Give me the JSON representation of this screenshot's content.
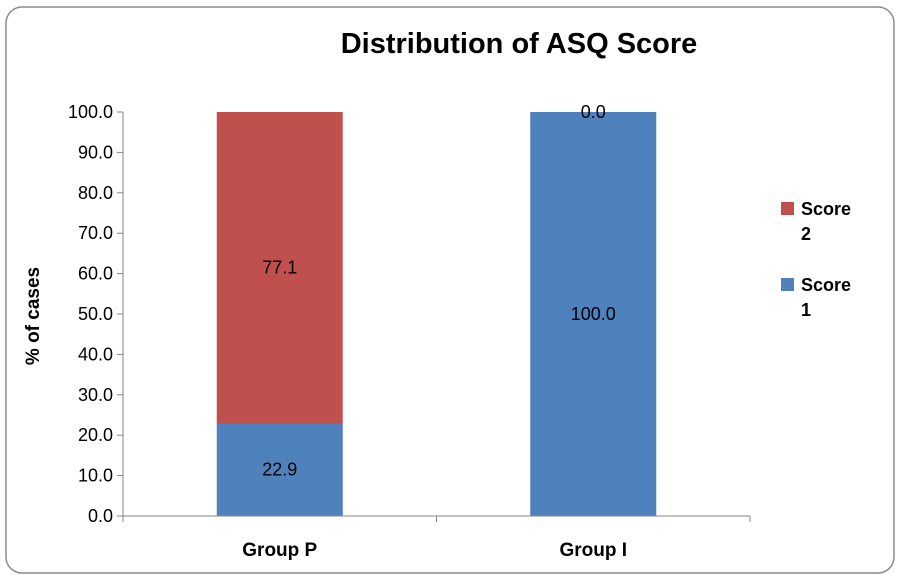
{
  "chart_data": {
    "type": "bar",
    "stacked": true,
    "title": "Distribution of ASQ Score",
    "xlabel": "",
    "ylabel": "% of cases",
    "categories": [
      "Group P",
      "Group I"
    ],
    "series": [
      {
        "name": "Score 1",
        "values": [
          22.9,
          100.0
        ],
        "labels": [
          "22.9",
          "100.0"
        ],
        "color": "#4F81BD"
      },
      {
        "name": "Score 2",
        "values": [
          77.1,
          0.0
        ],
        "labels": [
          "77.1",
          "0.0"
        ],
        "color": "#C0504D"
      }
    ],
    "ylim": [
      0,
      100
    ],
    "yticks": [
      "0.0",
      "10.0",
      "20.0",
      "30.0",
      "40.0",
      "50.0",
      "60.0",
      "70.0",
      "80.0",
      "90.0",
      "100.0"
    ],
    "grid": false,
    "legend_position": "right",
    "legend": [
      {
        "name_line1": "Score",
        "name_line2": "2",
        "color": "#C0504D"
      },
      {
        "name_line1": "Score",
        "name_line2": "1",
        "color": "#4F81BD"
      }
    ]
  }
}
